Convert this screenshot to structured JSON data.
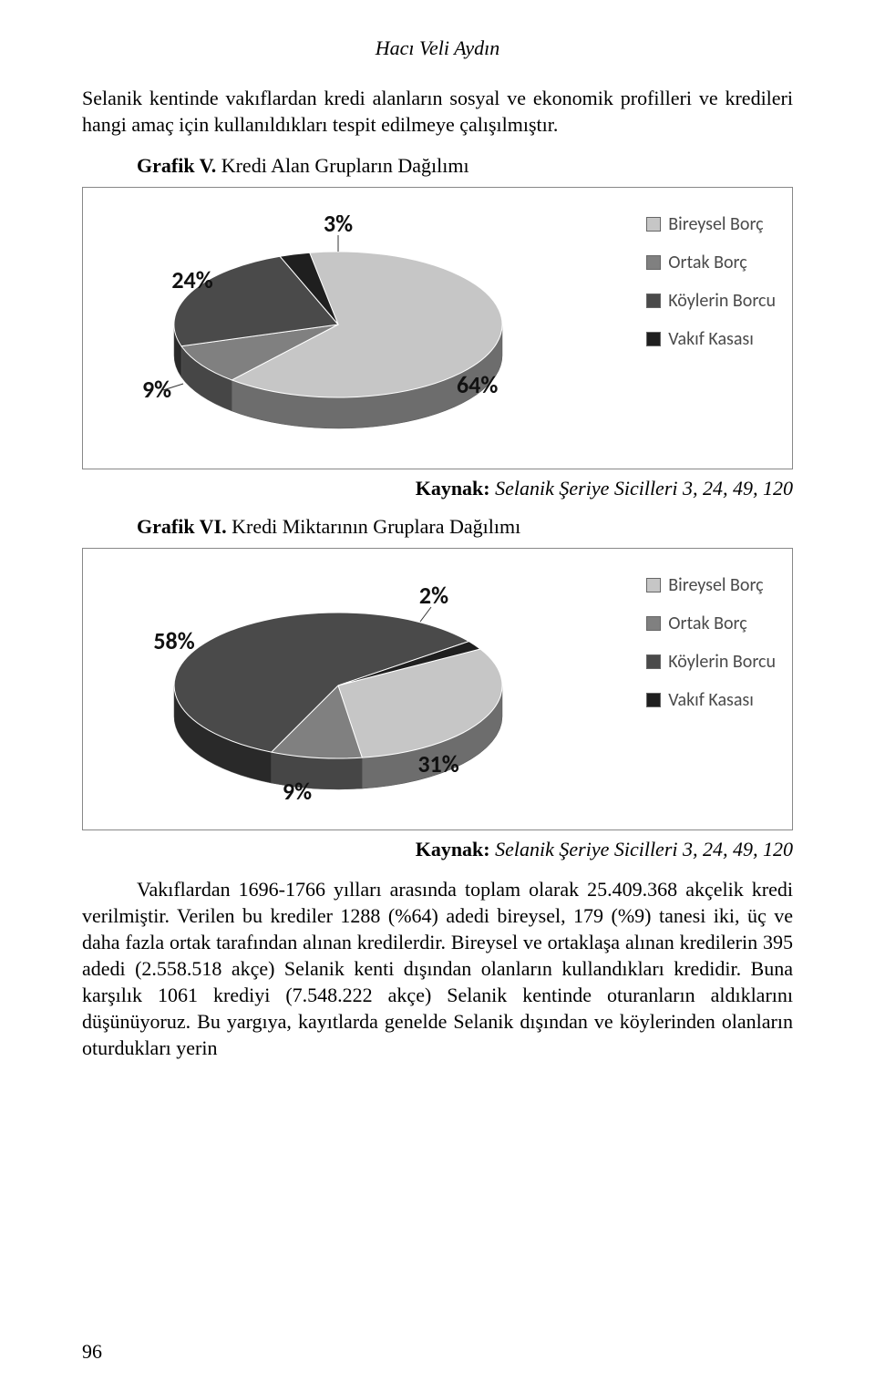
{
  "author": "Hacı Veli Aydın",
  "intro": "Selanik kentinde vakıflardan kredi alanların sosyal ve ekonomik profilleri ve kredileri hangi amaç için kullanıldıkları tespit edilmeye çalışılmıştır.",
  "chart1": {
    "title_bold": "Grafik V.",
    "title_rest": " Kredi Alan Grupların Dağılımı",
    "type": "pie-3d",
    "legend": [
      {
        "label": "Bireysel Borç",
        "color": "#c6c6c6"
      },
      {
        "label": "Ortak Borç",
        "color": "#808080"
      },
      {
        "label": "Köylerin Borcu",
        "color": "#4a4a4a"
      },
      {
        "label": "Vakıf Kasası",
        "color": "#1f1f1f"
      }
    ],
    "slices": [
      {
        "value": 64,
        "label": "64%",
        "color": "#c6c6c6"
      },
      {
        "value": 9,
        "label": "9%",
        "color": "#808080"
      },
      {
        "value": 24,
        "label": "24%",
        "color": "#4a4a4a"
      },
      {
        "value": 3,
        "label": "3%",
        "color": "#1f1f1f"
      }
    ],
    "source_bold": "Kaynak:",
    "source_ital": " Selanik Şeriye Sicilleri 3, 24, 49, 120"
  },
  "chart2": {
    "title_bold": "Grafik VI.",
    "title_rest": " Kredi Miktarının Gruplara Dağılımı",
    "type": "pie-3d",
    "legend": [
      {
        "label": "Bireysel Borç",
        "color": "#c6c6c6"
      },
      {
        "label": "Ortak Borç",
        "color": "#808080"
      },
      {
        "label": "Köylerin Borcu",
        "color": "#4a4a4a"
      },
      {
        "label": "Vakıf Kasası",
        "color": "#1f1f1f"
      }
    ],
    "slices": [
      {
        "value": 31,
        "label": "31%",
        "color": "#c6c6c6"
      },
      {
        "value": 9,
        "label": "9%",
        "color": "#808080"
      },
      {
        "value": 58,
        "label": "58%",
        "color": "#4a4a4a"
      },
      {
        "value": 2,
        "label": "2%",
        "color": "#1f1f1f"
      }
    ],
    "source_bold": "Kaynak:",
    "source_ital": " Selanik Şeriye Sicilleri 3, 24, 49, 120"
  },
  "body": "Vakıflardan 1696-1766 yılları arasında toplam olarak 25.409.368 akçelik kredi verilmiştir. Verilen bu krediler 1288 (%64) adedi bireysel, 179 (%9) tanesi iki, üç ve daha fazla ortak tarafından alınan kredilerdir. Bireysel ve ortaklaşa alınan kredilerin 395 adedi (2.558.518 akçe) Selanik kenti dışından olanların kullandıkları kredidir. Buna karşılık 1061 krediyi (7.548.222 akçe) Selanik kentinde oturanların aldıklarını düşünüyoruz. Bu yargıya, kayıtlarda genelde Selanik dışından ve köylerinden olanların oturdukları yerin",
  "page_number": "96"
}
